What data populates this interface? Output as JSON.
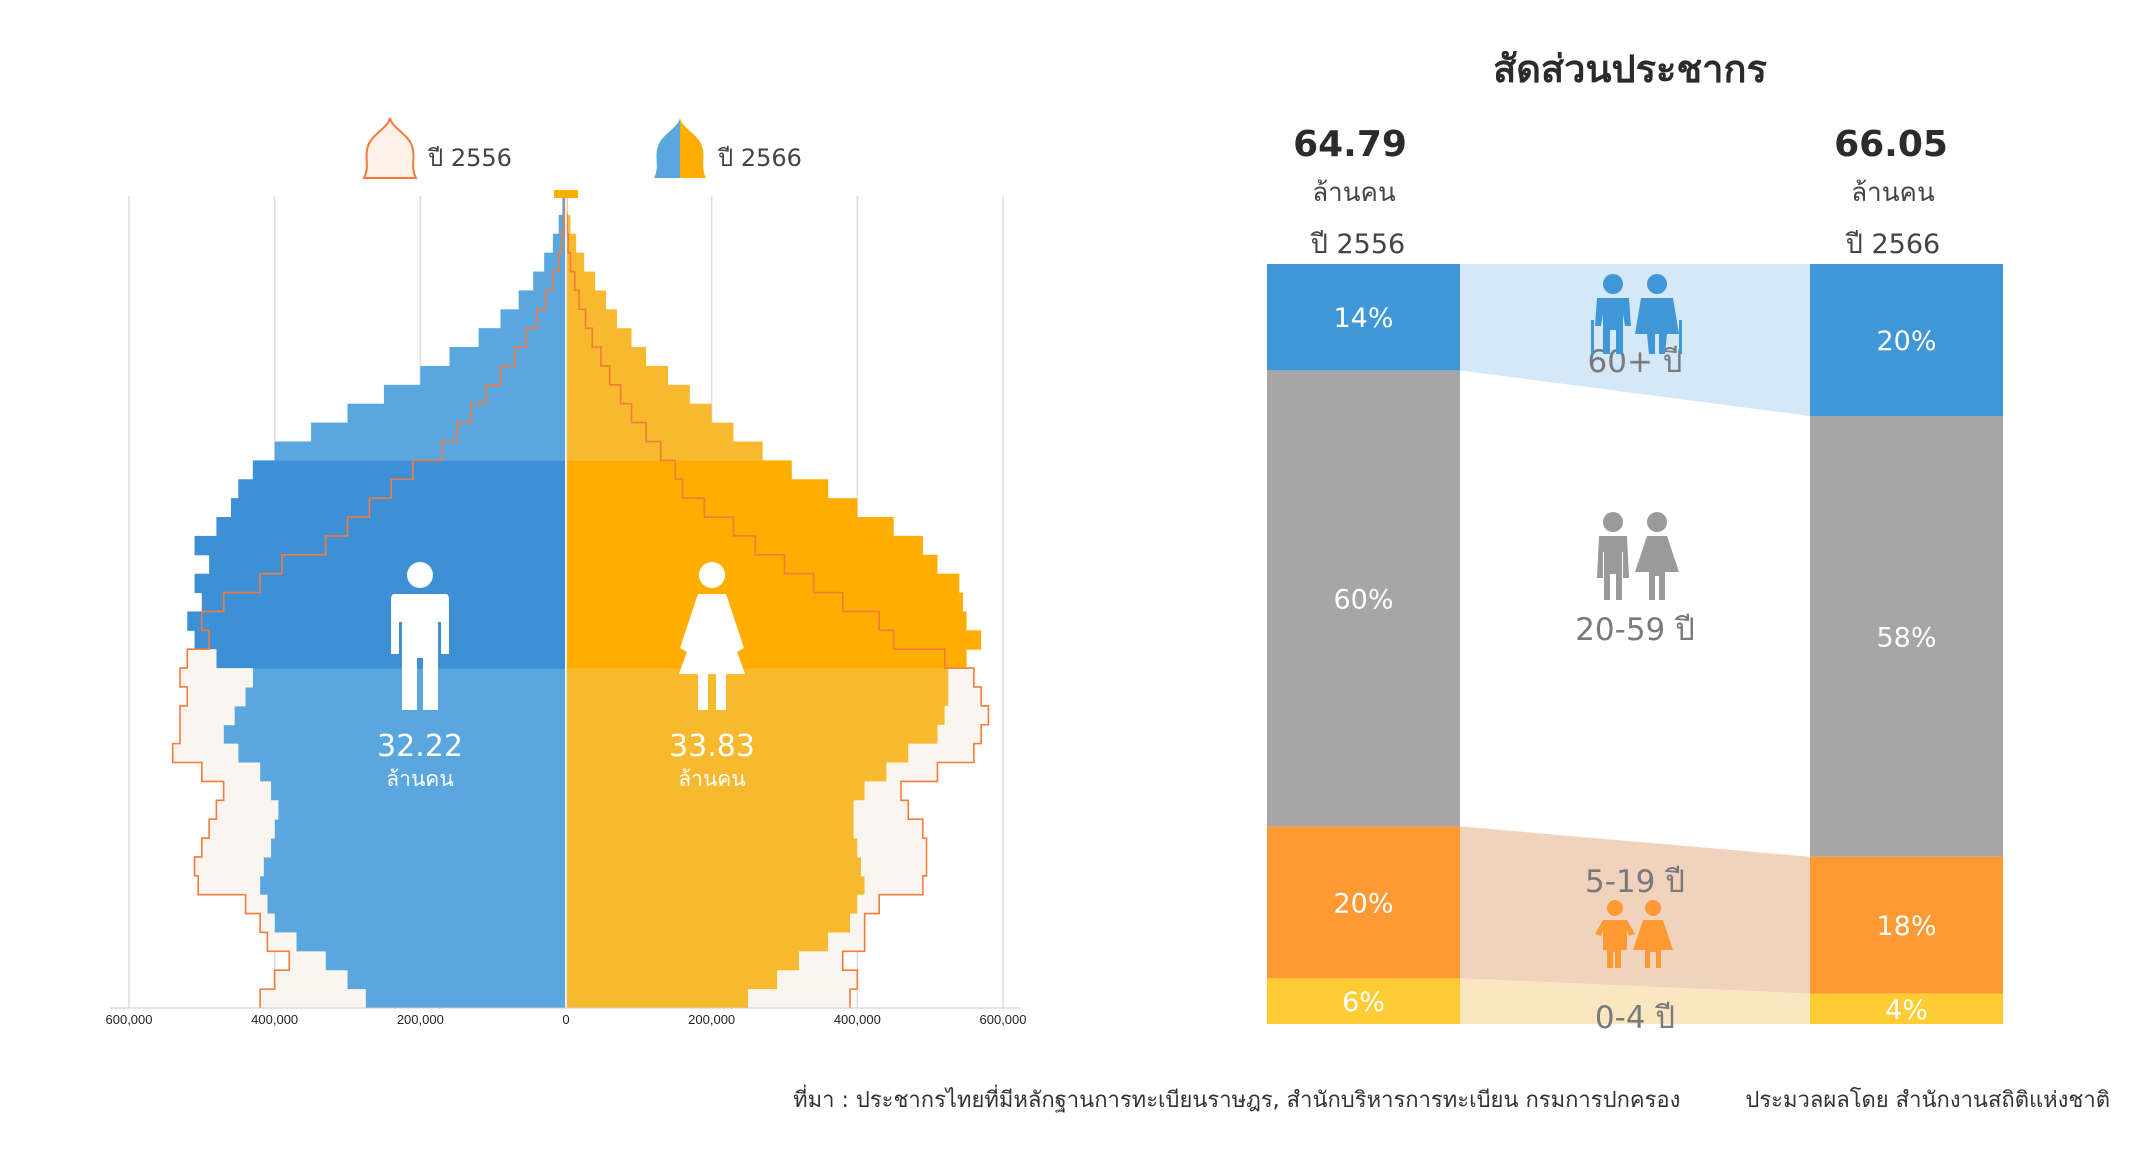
{
  "pyramid": {
    "legend": [
      {
        "label": "ปี 2556",
        "icon": "outline-pyramid-icon"
      },
      {
        "label": "ปี 2566",
        "icon": "filled-pyramid-icon"
      }
    ],
    "male": {
      "value": "32.22",
      "unit": "ล้านคน",
      "icon": "male-person-icon"
    },
    "female": {
      "value": "33.83",
      "unit": "ล้านคน",
      "icon": "female-person-icon"
    }
  },
  "right_panel": {
    "title": "สัดส่วนประชากร",
    "years": [
      {
        "total": "64.79",
        "unit": "ล้านคน",
        "year": "ปี 2556"
      },
      {
        "total": "66.05",
        "unit": "ล้านคน",
        "year": "ปี 2566"
      }
    ],
    "groups": [
      {
        "label": "60+  ปี",
        "icon": "elderly-couple-icon"
      },
      {
        "label": "20-59  ปี",
        "icon": "adult-couple-icon"
      },
      {
        "label": "5-19  ปี",
        "icon": "children-icon"
      },
      {
        "label": "0-4  ปี",
        "icon": ""
      }
    ]
  },
  "source": {
    "left": "ที่มา : ประชากรไทยที่มีหลักฐานการทะเบียนราษฎร, สำนักบริหารการทะเบียน กรมการปกครอง",
    "right": "ประมวลผลโดย สำนักงานสถิติแห่งชาติ"
  },
  "colors": {
    "male": "#5aa6de",
    "male_dark": "#3d8fd6",
    "female": "#f9b92e",
    "female_dark": "#ffae00",
    "outline_2556": "#f47b3c",
    "seg_60": "#3f97d8",
    "seg_20": "#a6a6a6",
    "seg_5": "#ff9933",
    "seg_0": "#ffcc33",
    "flow_60": "#d4e8f8",
    "flow_5": "#f1d3bd",
    "flow_0": "#fae6c1"
  },
  "chart_data": [
    {
      "type": "bar",
      "subtype": "population-pyramid",
      "xlim": [
        -600000,
        600000
      ],
      "xticks": [
        "600,000",
        "400,000",
        "200,000",
        "0",
        "200,000",
        "400,000",
        "600,000"
      ],
      "grid": true,
      "legend": "top",
      "series": [
        {
          "name": "ปี 2566",
          "male": [
            275000,
            300000,
            330000,
            370000,
            400000,
            410000,
            420000,
            415000,
            405000,
            400000,
            395000,
            405000,
            420000,
            450000,
            470000,
            455000,
            440000,
            430000,
            480000,
            510000,
            520000,
            500000,
            510000,
            490000,
            510000,
            480000,
            460000,
            450000,
            430000,
            400000,
            350000,
            300000,
            250000,
            200000,
            160000,
            120000,
            90000,
            65000,
            45000,
            30000,
            18000,
            10000,
            5000
          ],
          "female": [
            250000,
            290000,
            320000,
            360000,
            390000,
            400000,
            410000,
            405000,
            400000,
            395000,
            395000,
            410000,
            440000,
            470000,
            510000,
            520000,
            525000,
            525000,
            550000,
            570000,
            550000,
            545000,
            540000,
            510000,
            490000,
            450000,
            400000,
            360000,
            310000,
            270000,
            230000,
            200000,
            170000,
            140000,
            110000,
            90000,
            70000,
            55000,
            40000,
            25000,
            14000,
            6000,
            2000
          ]
        },
        {
          "name": "ปี 2556",
          "male": [
            420000,
            400000,
            380000,
            410000,
            420000,
            440000,
            505000,
            510000,
            500000,
            490000,
            480000,
            470000,
            500000,
            540000,
            530000,
            530000,
            520000,
            530000,
            520000,
            490000,
            500000,
            470000,
            420000,
            390000,
            330000,
            300000,
            270000,
            240000,
            210000,
            170000,
            150000,
            130000,
            110000,
            90000,
            70000,
            55000,
            40000,
            28000,
            18000,
            10000,
            6000,
            3000,
            1500
          ],
          "female": [
            390000,
            400000,
            380000,
            410000,
            410000,
            430000,
            490000,
            495000,
            495000,
            490000,
            470000,
            460000,
            510000,
            560000,
            570000,
            580000,
            570000,
            560000,
            520000,
            450000,
            430000,
            380000,
            340000,
            300000,
            260000,
            230000,
            190000,
            160000,
            150000,
            130000,
            110000,
            90000,
            75000,
            60000,
            48000,
            36000,
            27000,
            18000,
            12000,
            6000,
            3000,
            1500,
            800
          ]
        }
      ]
    },
    {
      "type": "bar",
      "subtype": "stacked-100",
      "categories": [
        "ปี 2556",
        "ปี 2566"
      ],
      "totals": [
        64.79,
        66.05
      ],
      "series": [
        {
          "name": "60+  ปี",
          "values": [
            14,
            20
          ]
        },
        {
          "name": "20-59  ปี",
          "values": [
            60,
            58
          ]
        },
        {
          "name": "5-19  ปี",
          "values": [
            20,
            18
          ]
        },
        {
          "name": "0-4  ปี",
          "values": [
            6,
            4
          ]
        }
      ],
      "value_format": "%"
    }
  ]
}
